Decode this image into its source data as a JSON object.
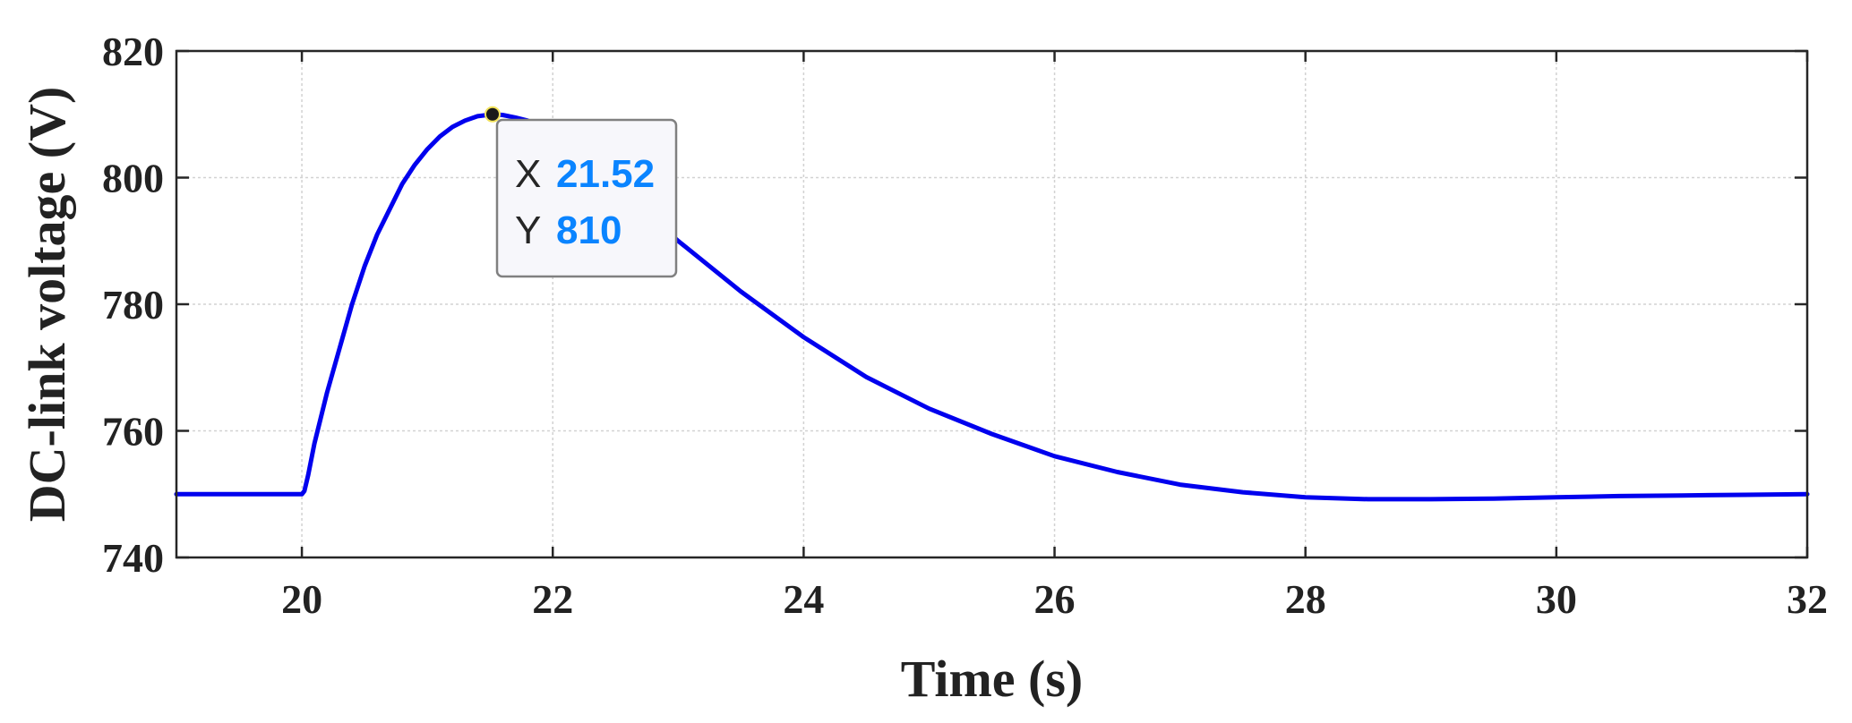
{
  "chart_data": {
    "type": "line",
    "xlabel": "Time (s)",
    "ylabel": "DC-link voltage (V)",
    "xlim": [
      19,
      32
    ],
    "ylim": [
      740,
      820
    ],
    "xticks": [
      20,
      22,
      24,
      26,
      28,
      30,
      32
    ],
    "yticks": [
      740,
      760,
      780,
      800,
      820
    ],
    "grid": true,
    "series": [
      {
        "color": "#0000ee",
        "x": [
          19,
          20,
          20.02,
          20.05,
          20.08,
          20.1,
          20.15,
          20.2,
          20.3,
          20.4,
          20.5,
          20.6,
          20.7,
          20.8,
          20.9,
          21.0,
          21.1,
          21.2,
          21.3,
          21.4,
          21.52,
          21.6,
          21.7,
          21.8,
          21.9,
          22.0,
          22.2,
          22.5,
          23.0,
          23.5,
          24.0,
          24.5,
          25.0,
          25.5,
          26.0,
          26.5,
          27.0,
          27.5,
          28.0,
          28.5,
          29.0,
          29.5,
          30.0,
          30.5,
          31.0,
          31.5,
          32.0
        ],
        "y": [
          750,
          750,
          750.5,
          753,
          756,
          758,
          762,
          766,
          773,
          780,
          786,
          791,
          795,
          799,
          802,
          804.5,
          806.5,
          808,
          809,
          809.7,
          810,
          809.9,
          809.5,
          809,
          808,
          807,
          804,
          799,
          790,
          782,
          774.8,
          768.5,
          763.5,
          759.5,
          756,
          753.5,
          751.5,
          750.3,
          749.5,
          749.2,
          749.2,
          749.3,
          749.5,
          749.7,
          749.8,
          749.9,
          750
        ]
      }
    ],
    "annotation": {
      "x_key": "X",
      "x_value": "21.52",
      "y_key": "Y",
      "y_value": "810",
      "point": [
        21.52,
        810
      ],
      "value_color": "#0a84ff"
    }
  }
}
